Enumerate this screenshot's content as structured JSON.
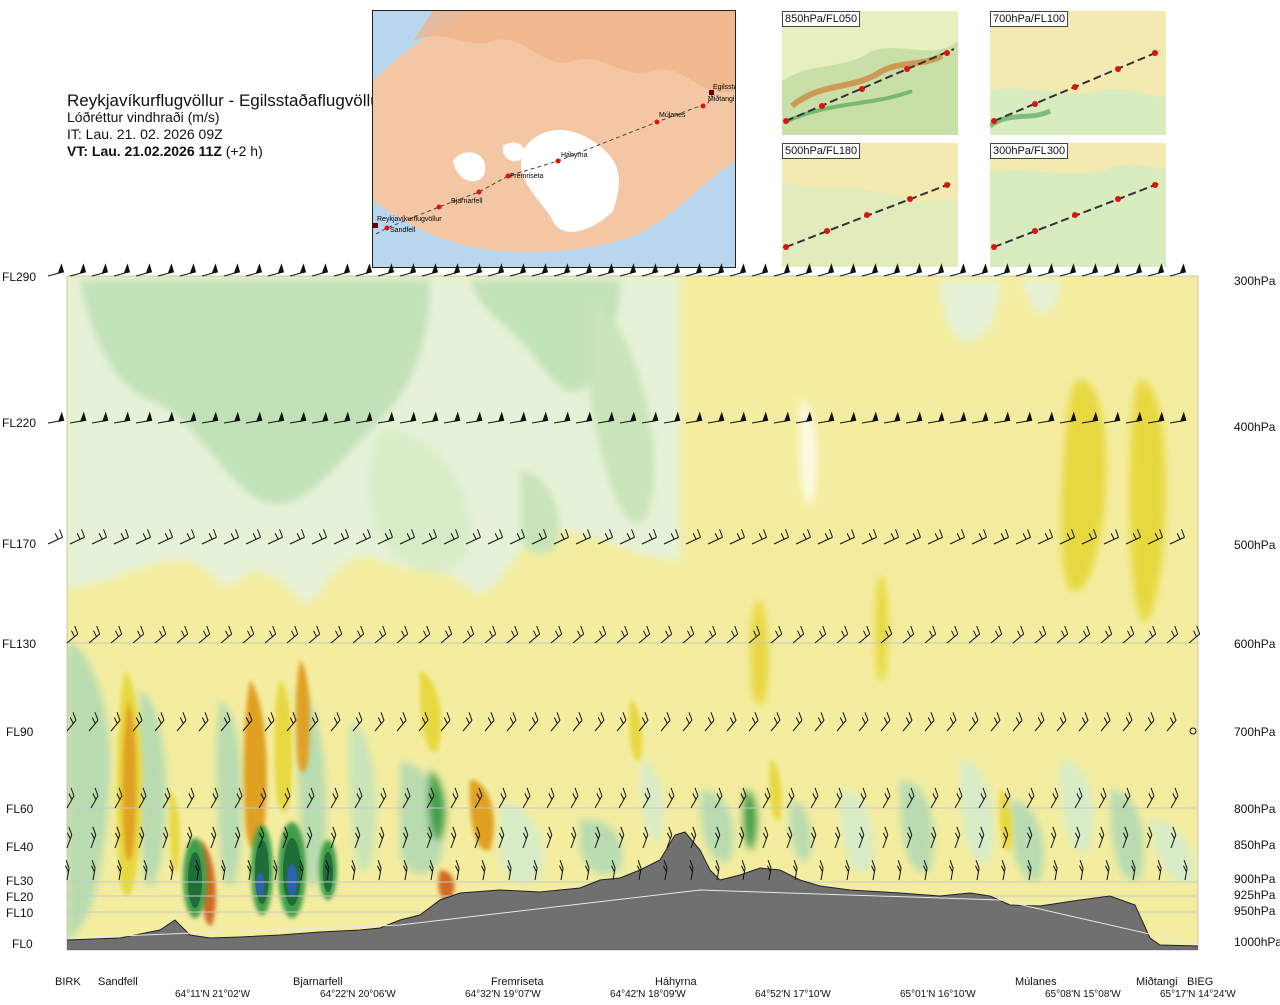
{
  "header": {
    "route": "Reykjavíkurflugvöllur - Egilsstaðaflugvöllur",
    "parameter": "Lóðréttur vindhraði (m/s)",
    "init_time": "IT: Lau. 21. 02. 2026 09Z",
    "valid_label": "VT: Lau. 21.02.2026 11Z",
    "valid_offset": "(+2 h)"
  },
  "map": {
    "points": [
      "Reykjavíkurflugvöllur",
      "Sandfell",
      "Bjarnarfell",
      "Fremriseta",
      "Háhyrna",
      "Múlanes",
      "Miðtangi",
      "Egilsstaðir"
    ]
  },
  "mini_maps": [
    {
      "label": "850hPa/FL050"
    },
    {
      "label": "700hPa/FL100"
    },
    {
      "label": "500hPa/FL180"
    },
    {
      "label": "300hPa/FL300"
    }
  ],
  "colors": {
    "updraft_weak": "#f4eda0",
    "updraft_mid": "#e8d840",
    "updraft_strong": "#e0a020",
    "updraft_very_strong": "#d06a20",
    "downdraft_weak": "#e6f2d8",
    "downdraft_mid": "#b8dcb0",
    "downdraft_strong": "#3f9e4a",
    "downdraft_very_strong": "#1f6e3a",
    "core": "#3060b0",
    "terrain": "#707070"
  },
  "chart_data": {
    "type": "heatmap",
    "title": "Reykjavíkurflugvöllur - Egilsstaðaflugvöllur",
    "flight_levels": [
      "FL290",
      "FL220",
      "FL170",
      "FL130",
      "FL90",
      "FL60",
      "FL40",
      "FL30",
      "FL20",
      "FL10",
      "FL0"
    ],
    "pressure_levels": [
      "300hPa",
      "400hPa",
      "500hPa",
      "600hPa",
      "700hPa",
      "800hPa",
      "850hPa",
      "900hPa",
      "925hPa",
      "950hPa",
      "1000hPa"
    ],
    "locations": [
      "BIRK",
      "Sandfell",
      "Bjarnarfell",
      "Fremriseta",
      "Háhyrna",
      "Múlanes",
      "Miðtangi",
      "BIEG"
    ],
    "coordinates": [
      "64°11'N 21°02'W",
      "64°22'N 20°06'W",
      "64°32'N 19°07'W",
      "64°42'N 18°09'W",
      "64°52'N 17°10'W",
      "65°01'N 16°10'W",
      "65°08'N 15°08'W",
      "65°17'N 14°24'W"
    ]
  }
}
